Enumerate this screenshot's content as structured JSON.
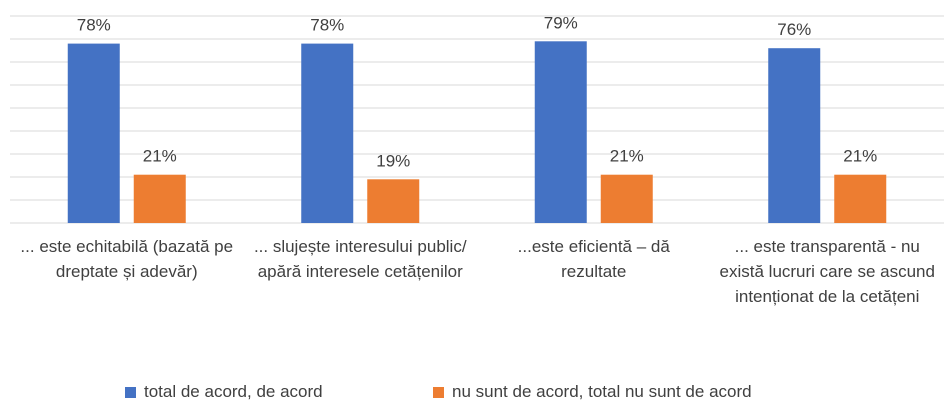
{
  "chart_data": {
    "type": "bar",
    "categories": [
      "... este echitabilă (bazată pe dreptate și adevăr)",
      "... slujește interesului public/ apără interesele cetățenilor",
      "...este eficientă – dă rezultate",
      "... este transparentă - nu există lucruri care se ascund intenționat de la cetățeni"
    ],
    "series": [
      {
        "name": "total de acord, de acord",
        "color": "#4472c4",
        "values": [
          78,
          78,
          79,
          76
        ],
        "value_labels": [
          "78%",
          "78%",
          "79%",
          "76%"
        ]
      },
      {
        "name": "nu sunt de acord, total nu sunt de acord",
        "color": "#ed7d31",
        "values": [
          21,
          19,
          21,
          21
        ],
        "value_labels": [
          "21%",
          "19%",
          "21%",
          "21%"
        ]
      }
    ],
    "ylim": [
      0,
      90
    ],
    "yticks": [
      0,
      10,
      20,
      30,
      40,
      50,
      60,
      70,
      80,
      90
    ],
    "grid": true,
    "legend": "bottom"
  }
}
